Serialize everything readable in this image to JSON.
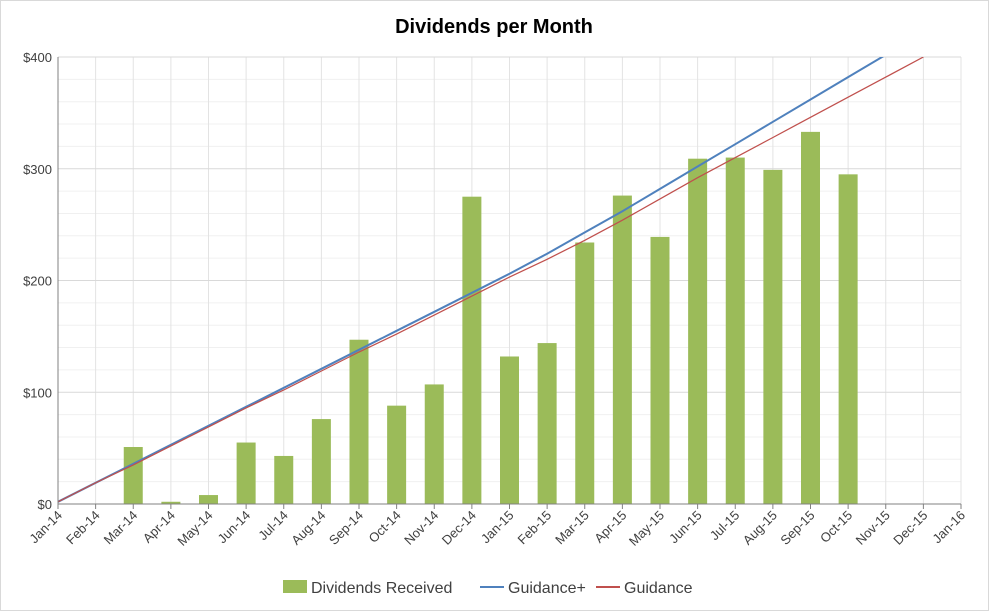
{
  "chart_data": {
    "type": "bar",
    "title": "Dividends per Month",
    "xlabel": "",
    "ylabel": "",
    "categories": [
      "Jan-14",
      "Feb-14",
      "Mar-14",
      "Apr-14",
      "May-14",
      "Jun-14",
      "Jul-14",
      "Aug-14",
      "Sep-14",
      "Oct-14",
      "Nov-14",
      "Dec-14",
      "Jan-15",
      "Feb-15",
      "Mar-15",
      "Apr-15",
      "May-15",
      "Jun-15",
      "Jul-15",
      "Aug-15",
      "Sep-15",
      "Oct-15",
      "Nov-15",
      "Dec-15",
      "Jan-16"
    ],
    "ylim": [
      0,
      400
    ],
    "y_ticks": [
      0,
      100,
      200,
      300,
      400
    ],
    "y_tick_labels": [
      "$0",
      "$100",
      "$200",
      "$300",
      "$400"
    ],
    "grid": true,
    "legend_position": "bottom",
    "series": [
      {
        "name": "Dividends Received",
        "type": "bar",
        "color": "#9bbb59",
        "values": [
          null,
          null,
          51,
          2,
          8,
          55,
          43,
          76,
          147,
          88,
          107,
          275,
          132,
          144,
          234,
          276,
          239,
          309,
          310,
          299,
          333,
          295,
          null,
          null,
          null
        ]
      },
      {
        "name": "Guidance+",
        "type": "line",
        "color": "#4f81bd",
        "values": [
          2,
          19,
          36,
          53,
          70,
          87,
          104,
          121,
          138,
          155,
          172,
          189,
          206,
          224,
          243,
          262,
          282,
          302,
          322,
          342,
          362,
          382,
          402,
          null,
          null
        ]
      },
      {
        "name": "Guidance",
        "type": "line",
        "color": "#c0504d",
        "values": [
          2,
          19,
          35,
          52,
          69,
          86,
          102,
          119,
          136,
          152,
          169,
          186,
          203,
          219,
          236,
          254,
          273,
          292,
          310,
          328,
          346,
          364,
          382,
          400,
          null
        ]
      }
    ]
  }
}
